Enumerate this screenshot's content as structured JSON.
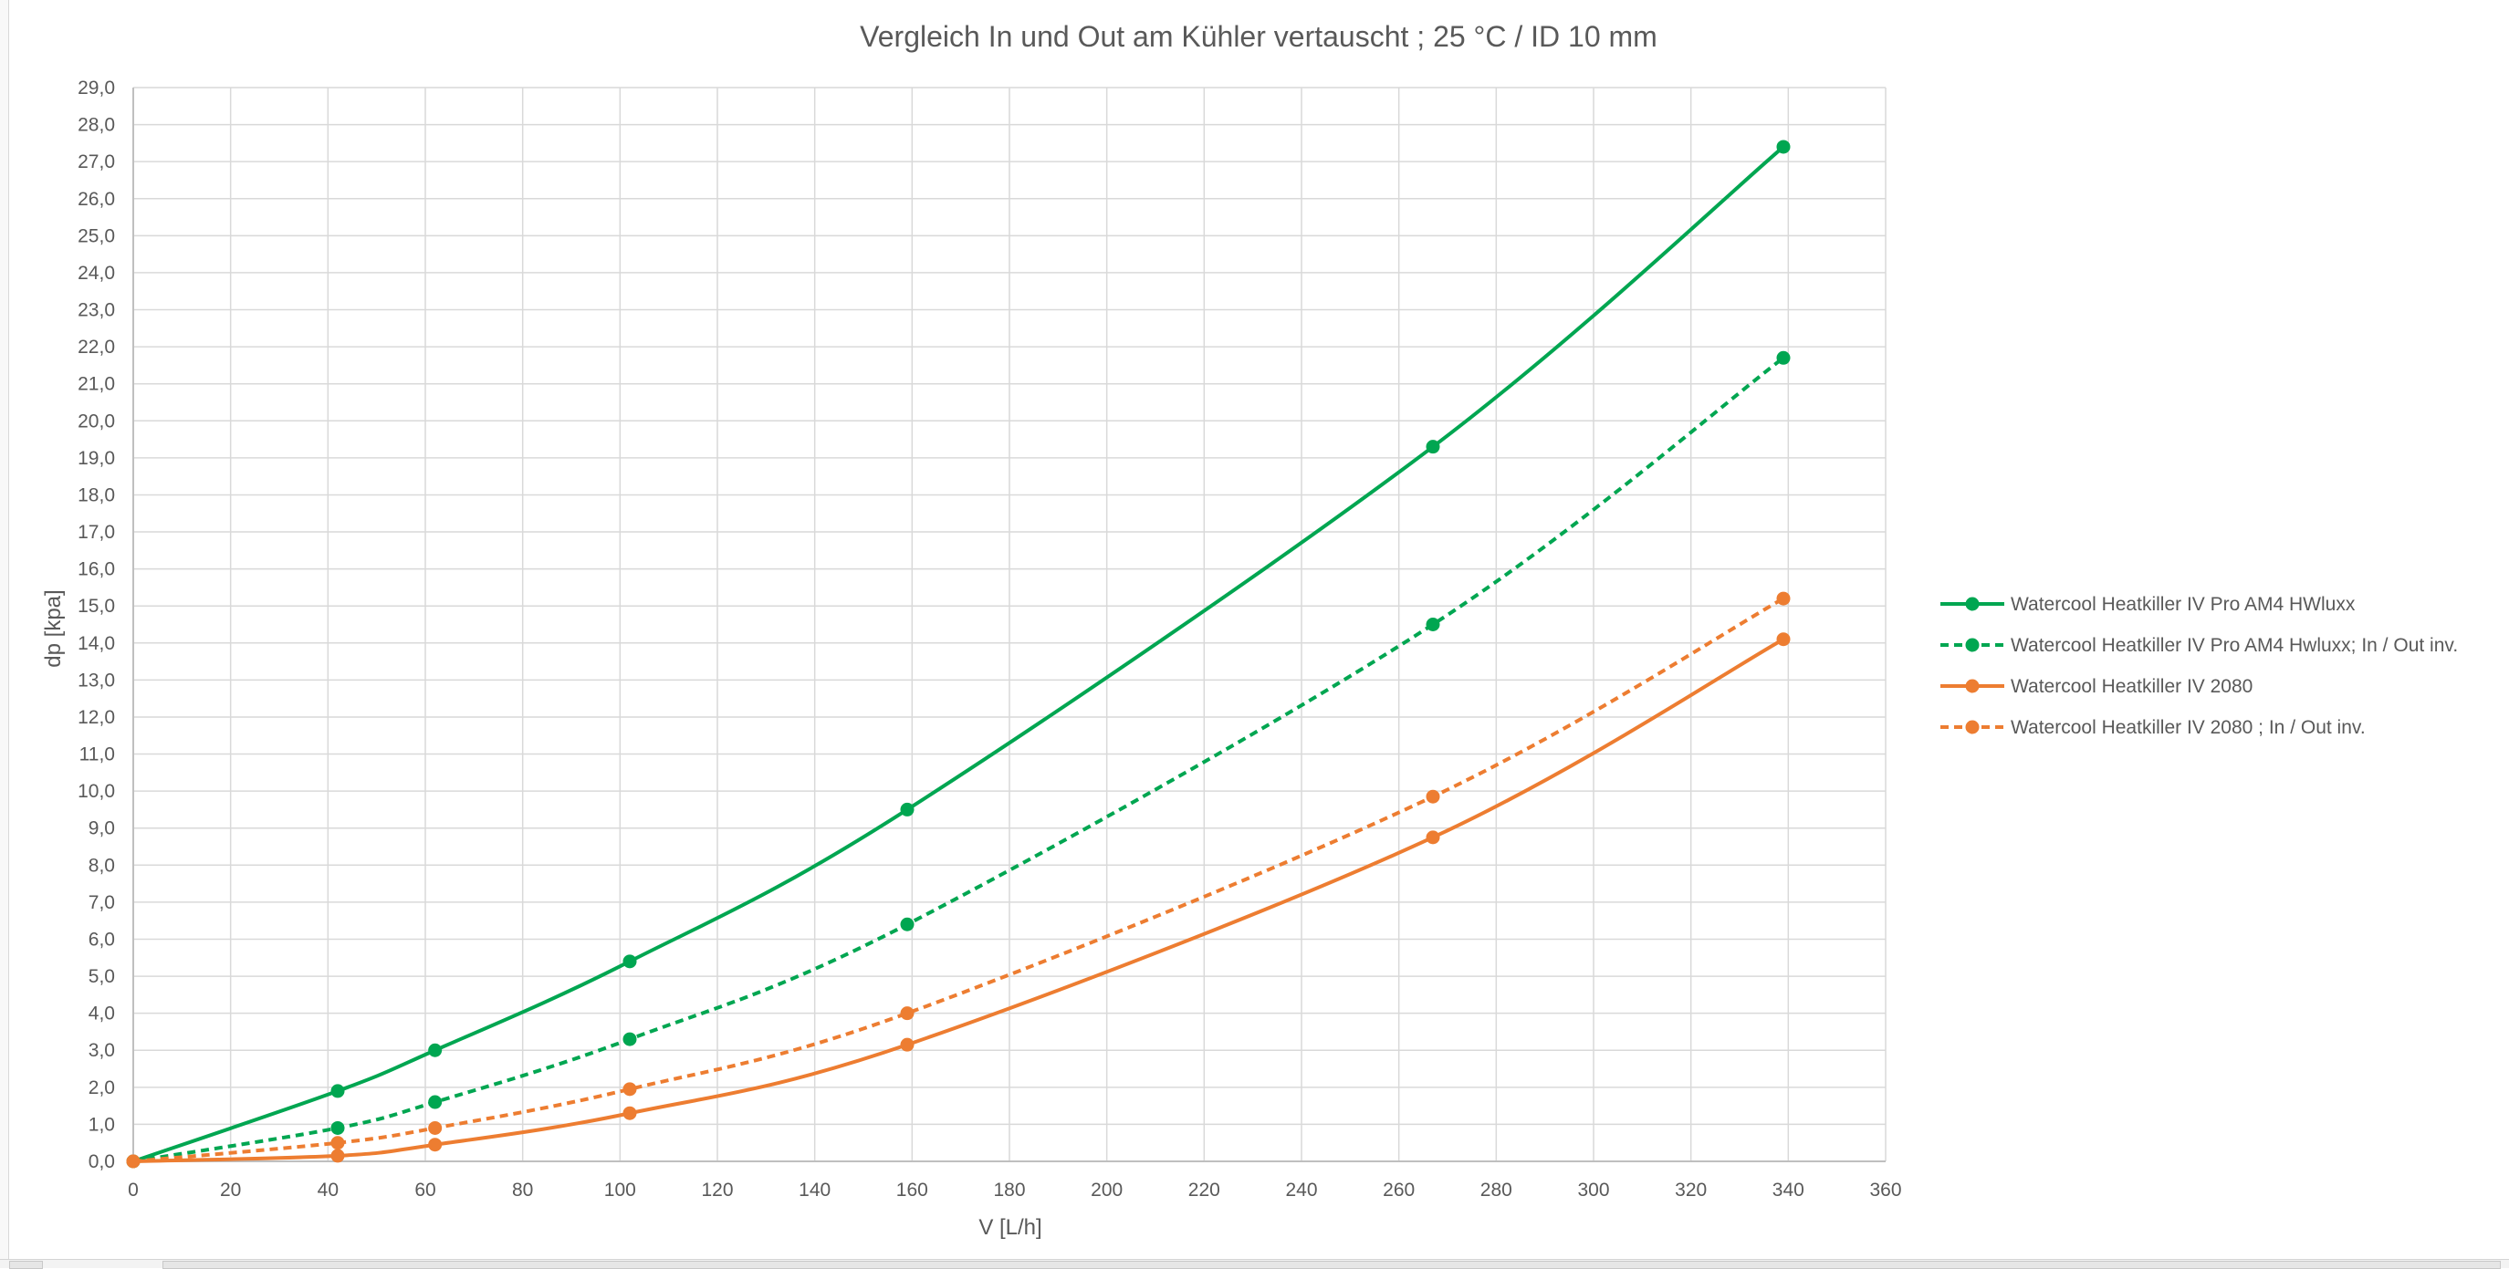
{
  "chart_data": {
    "type": "line",
    "title": "Vergleich In und Out am Kühler vertauscht ; 25 °C / ID 10 mm",
    "xlabel": "V [L/h]",
    "ylabel": "dp [kpa]",
    "xlim": [
      0,
      360
    ],
    "ylim": [
      0,
      29
    ],
    "x_ticks": [
      "0",
      "20",
      "40",
      "60",
      "80",
      "100",
      "120",
      "140",
      "160",
      "180",
      "200",
      "220",
      "240",
      "260",
      "280",
      "300",
      "320",
      "340",
      "360"
    ],
    "y_ticks": [
      "0,0",
      "1,0",
      "2,0",
      "3,0",
      "4,0",
      "5,0",
      "6,0",
      "7,0",
      "8,0",
      "9,0",
      "10,0",
      "11,0",
      "12,0",
      "13,0",
      "14,0",
      "15,0",
      "16,0",
      "17,0",
      "18,0",
      "19,0",
      "20,0",
      "21,0",
      "22,0",
      "23,0",
      "24,0",
      "25,0",
      "26,0",
      "27,0",
      "28,0",
      "29,0"
    ],
    "grid": true,
    "legend_position": "right",
    "series": [
      {
        "name": "Watercool Heatkiller IV Pro AM4 HWluxx",
        "color": "#00a651",
        "dashed": false,
        "x": [
          0,
          42,
          62,
          102,
          159,
          267,
          339
        ],
        "y": [
          0.0,
          1.9,
          3.0,
          5.4,
          9.5,
          19.3,
          27.4
        ]
      },
      {
        "name": "Watercool Heatkiller IV Pro AM4 Hwluxx; In / Out inv.",
        "color": "#00a651",
        "dashed": true,
        "x": [
          0,
          42,
          62,
          102,
          159,
          267,
          339
        ],
        "y": [
          0.0,
          0.9,
          1.6,
          3.3,
          6.4,
          14.5,
          21.7
        ]
      },
      {
        "name": "Watercool Heatkiller IV 2080",
        "color": "#ed7d31",
        "dashed": false,
        "x": [
          0,
          42,
          62,
          102,
          159,
          267,
          339
        ],
        "y": [
          0.0,
          0.15,
          0.45,
          1.3,
          3.15,
          8.75,
          14.1
        ]
      },
      {
        "name": "Watercool Heatkiller IV 2080 ; In / Out inv.",
        "color": "#ed7d31",
        "dashed": true,
        "x": [
          0,
          42,
          62,
          102,
          159,
          267,
          339
        ],
        "y": [
          0.0,
          0.5,
          0.9,
          1.95,
          4.0,
          9.85,
          15.2
        ]
      }
    ]
  }
}
